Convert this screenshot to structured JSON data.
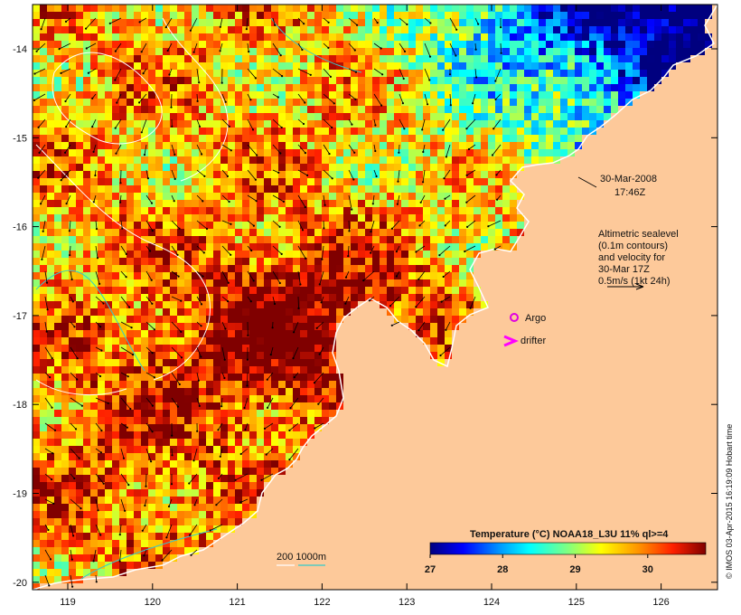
{
  "map": {
    "lon_ticks": [
      "119",
      "120",
      "121",
      "122",
      "123",
      "124",
      "125",
      "126"
    ],
    "lat_ticks": [
      "-14",
      "-15",
      "-16",
      "-17",
      "-18",
      "-19",
      "-20"
    ],
    "date_label": "30-Mar-2008",
    "time_label": "17:46Z",
    "altimetry_lines": [
      "Altimetric sealevel",
      "(0.1m contours)",
      "and velocity for",
      "30-Mar 17Z",
      "0.5m/s (1kt 24h)"
    ],
    "argo_label": "Argo",
    "drifter_label": "drifter",
    "depth_label": "200  1000m",
    "colorbar_title": "Temperature (°C) NOAA18_L3U 11% ql>=4",
    "colorbar_ticks": [
      "27",
      "28",
      "29",
      "30"
    ],
    "credit": "© IMOS 03-Apr-2015 16:19:09 Hobart time",
    "colors": {
      "land": "#fdc99a",
      "argo": "#e000e0",
      "drifter": "#ff00ff",
      "isobath": "#33cccc",
      "contour": "#ffffff"
    }
  }
}
